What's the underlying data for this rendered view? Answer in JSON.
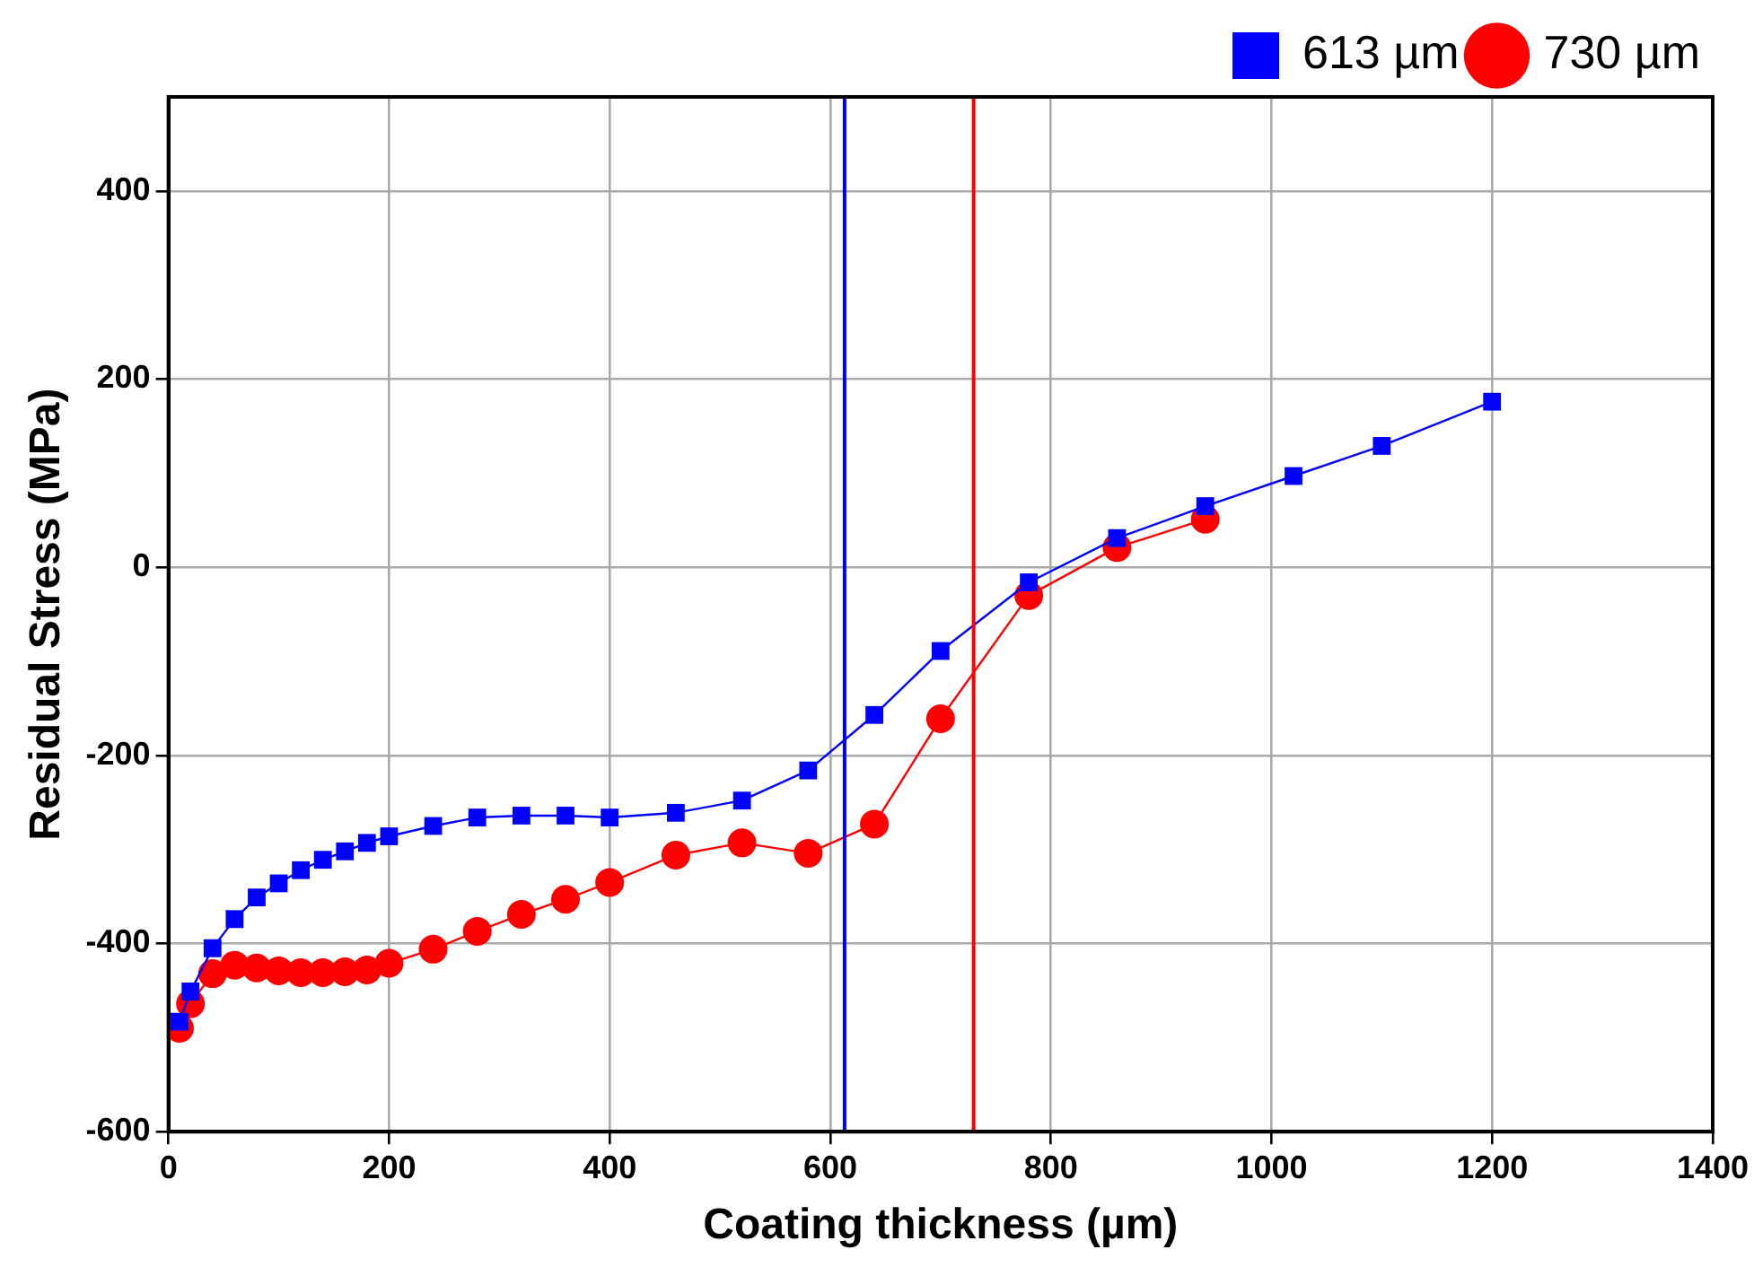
{
  "chart_data": {
    "type": "line",
    "xlabel": "Coating thickness (µm)",
    "ylabel": "Residual Stress (MPa)",
    "xlim": [
      0,
      1400
    ],
    "xticks": [
      0,
      200,
      400,
      600,
      800,
      1000,
      1200,
      1400
    ],
    "ylim": [
      -600,
      500
    ],
    "yticks": [
      -600,
      -400,
      -200,
      0,
      200,
      400
    ],
    "grid": true,
    "legend": "top right",
    "series": [
      {
        "name": "613 µm",
        "color": "#0000ff",
        "marker": "square",
        "x": [
          10,
          20,
          40,
          60,
          80,
          100,
          120,
          140,
          160,
          180,
          200,
          240,
          280,
          320,
          360,
          400,
          460,
          520,
          580,
          640,
          700,
          780,
          860,
          940,
          1020,
          1100,
          1200
        ],
        "values": [
          -483,
          -451,
          -405,
          -374,
          -351,
          -336,
          -322,
          -311,
          -302,
          -293,
          -286,
          -275,
          -266,
          -264,
          -264,
          -266,
          -261,
          -248,
          -216,
          -157,
          -89,
          -16,
          31,
          65,
          97,
          129,
          176
        ]
      },
      {
        "name": "730 µm",
        "color": "#ff0000",
        "marker": "circle",
        "x": [
          10,
          20,
          40,
          60,
          80,
          100,
          120,
          140,
          160,
          180,
          200,
          240,
          280,
          320,
          360,
          400,
          460,
          520,
          580,
          640,
          700,
          780,
          860,
          940
        ],
        "values": [
          -490,
          -464,
          -432,
          -423,
          -426,
          -429,
          -431,
          -431,
          -430,
          -428,
          -421,
          -406,
          -387,
          -369,
          -353,
          -335,
          -306,
          -293,
          -304,
          -273,
          -161,
          -30,
          21,
          51
        ]
      }
    ],
    "ref_lines": [
      {
        "axis": "x",
        "value": 613,
        "color": "#0000ff"
      },
      {
        "axis": "x",
        "value": 730,
        "color": "#ff0000"
      }
    ]
  }
}
